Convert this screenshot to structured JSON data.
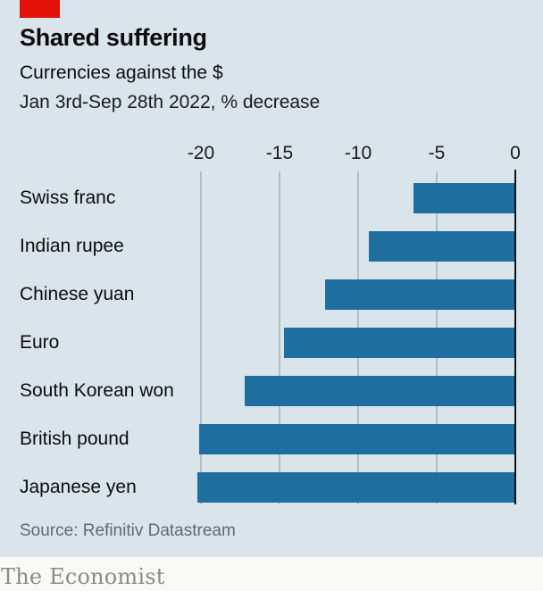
{
  "header": {
    "title": "Shared suffering",
    "subtitle": "Currencies against the $",
    "period": "Jan 3rd-Sep 28th 2022, % decrease"
  },
  "chart_data": {
    "type": "bar",
    "orientation": "horizontal",
    "title": "Shared suffering",
    "subtitle": "Currencies against the $",
    "note": "Jan 3rd-Sep 28th 2022, % decrease",
    "categories": [
      "Swiss franc",
      "Indian rupee",
      "Chinese yuan",
      "Euro",
      "South Korean won",
      "British pound",
      "Japanese yen"
    ],
    "values": [
      -6.5,
      -9.3,
      -12.1,
      -14.7,
      -17.2,
      -20.1,
      -20.2
    ],
    "xticks": [
      -20,
      -15,
      -10,
      -5,
      0
    ],
    "xlim": [
      -20.5,
      0
    ],
    "xlabel": "",
    "ylabel": "",
    "grid": true,
    "legend": "none",
    "bar_color": "#1e6f9f"
  },
  "colors": {
    "background": "#d9e5ea",
    "accent_red": "#e3120b",
    "bar_blue": "#1e6f9f",
    "gridline": "#b0bfc5",
    "axis": "#121212",
    "text_dark": "#0c0c0c",
    "source_gray": "#5f6b6e",
    "brand_gray": "#8a8a8a"
  },
  "source": "Source: Refinitiv Datastream",
  "footer": {
    "brand": "The Economist"
  }
}
